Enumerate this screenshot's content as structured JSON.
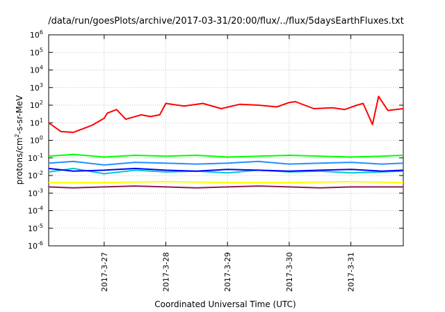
{
  "chart_data": {
    "type": "line",
    "title": "/data/run/goesPlots/archive/2017-03-31/20:00/flux/../flux/5daysEarthFluxes.txt",
    "xlabel": "Coordinated Universal Time (UTC)",
    "ylabel": {
      "base": "protons/cm",
      "sup": "2",
      "rest": "-s-sr-MeV"
    },
    "x_range_days": [
      26.1,
      31.85
    ],
    "x_ticks": [
      {
        "day": 27,
        "label": "2017-3-27"
      },
      {
        "day": 28,
        "label": "2017-3-28"
      },
      {
        "day": 29,
        "label": "2017-3-29"
      },
      {
        "day": 30,
        "label": "2017-3-30"
      },
      {
        "day": 31,
        "label": "2017-3-31"
      }
    ],
    "y_scale": "log",
    "y_range_exp": [
      -6,
      6
    ],
    "y_tick_base": "10",
    "y_tick_exponents": [
      "6",
      "5",
      "4",
      "3",
      "2",
      "1",
      "0",
      "-1",
      "-2",
      "-3",
      "-4",
      "-5",
      "-6"
    ],
    "grid": true,
    "series": [
      {
        "color": "#ff0000",
        "day": [
          26.1,
          26.3,
          26.5,
          26.8,
          27.0,
          27.05,
          27.2,
          27.35,
          27.6,
          27.75,
          27.9,
          28.0,
          28.3,
          28.6,
          28.9,
          29.2,
          29.5,
          29.8,
          30.0,
          30.1,
          30.4,
          30.7,
          30.9,
          31.1,
          31.2,
          31.35,
          31.45,
          31.6,
          31.85
        ],
        "log_flux": [
          1.0,
          0.5,
          0.45,
          0.85,
          1.25,
          1.55,
          1.75,
          1.2,
          1.45,
          1.35,
          1.45,
          2.1,
          1.95,
          2.1,
          1.8,
          2.05,
          2.0,
          1.9,
          2.15,
          2.2,
          1.8,
          1.85,
          1.75,
          2.0,
          2.1,
          0.9,
          2.5,
          1.7,
          1.8
        ]
      },
      {
        "color": "#00ff00",
        "day": [
          26.1,
          26.5,
          27.0,
          27.5,
          28.0,
          28.5,
          29.0,
          29.5,
          30.0,
          30.5,
          31.0,
          31.5,
          31.85
        ],
        "log_flux": [
          -0.9,
          -0.8,
          -0.95,
          -0.85,
          -0.9,
          -0.85,
          -0.95,
          -0.9,
          -0.85,
          -0.9,
          -0.95,
          -0.9,
          -0.85
        ]
      },
      {
        "color": "#1e90ff",
        "day": [
          26.1,
          26.5,
          27.0,
          27.5,
          28.0,
          28.5,
          29.0,
          29.5,
          30.0,
          30.5,
          31.0,
          31.5,
          31.85
        ],
        "log_flux": [
          -1.3,
          -1.2,
          -1.4,
          -1.25,
          -1.3,
          -1.35,
          -1.3,
          -1.2,
          -1.35,
          -1.3,
          -1.25,
          -1.35,
          -1.3
        ]
      },
      {
        "color": "#00c8c8",
        "day": [
          26.1,
          26.5,
          27.0,
          27.5,
          28.0,
          28.5,
          29.0,
          29.5,
          30.0,
          30.5,
          31.0,
          31.5,
          31.85
        ],
        "log_flux": [
          -1.8,
          -1.6,
          -1.9,
          -1.7,
          -1.8,
          -1.75,
          -1.85,
          -1.7,
          -1.8,
          -1.75,
          -1.85,
          -1.8,
          -1.75
        ]
      },
      {
        "color": "#0000ff",
        "day": [
          26.1,
          26.5,
          27.0,
          27.5,
          28.0,
          28.5,
          29.0,
          29.5,
          30.0,
          30.5,
          31.0,
          31.5,
          31.85
        ],
        "log_flux": [
          -1.6,
          -1.75,
          -1.7,
          -1.6,
          -1.7,
          -1.75,
          -1.65,
          -1.7,
          -1.75,
          -1.7,
          -1.65,
          -1.75,
          -1.7
        ]
      },
      {
        "color": "#ffff00",
        "day": [
          26.1,
          27.0,
          28.0,
          29.0,
          30.0,
          31.0,
          31.85
        ],
        "log_flux": [
          -2.4,
          -2.4,
          -2.35,
          -2.4,
          -2.4,
          -2.35,
          -2.4
        ]
      },
      {
        "color": "#8b1a5a",
        "day": [
          26.1,
          26.5,
          27.0,
          27.5,
          28.0,
          28.5,
          29.0,
          29.5,
          30.0,
          30.5,
          31.0,
          31.5,
          31.85
        ],
        "log_flux": [
          -2.65,
          -2.7,
          -2.65,
          -2.6,
          -2.65,
          -2.7,
          -2.65,
          -2.6,
          -2.65,
          -2.7,
          -2.65,
          -2.65,
          -2.65
        ]
      }
    ]
  }
}
